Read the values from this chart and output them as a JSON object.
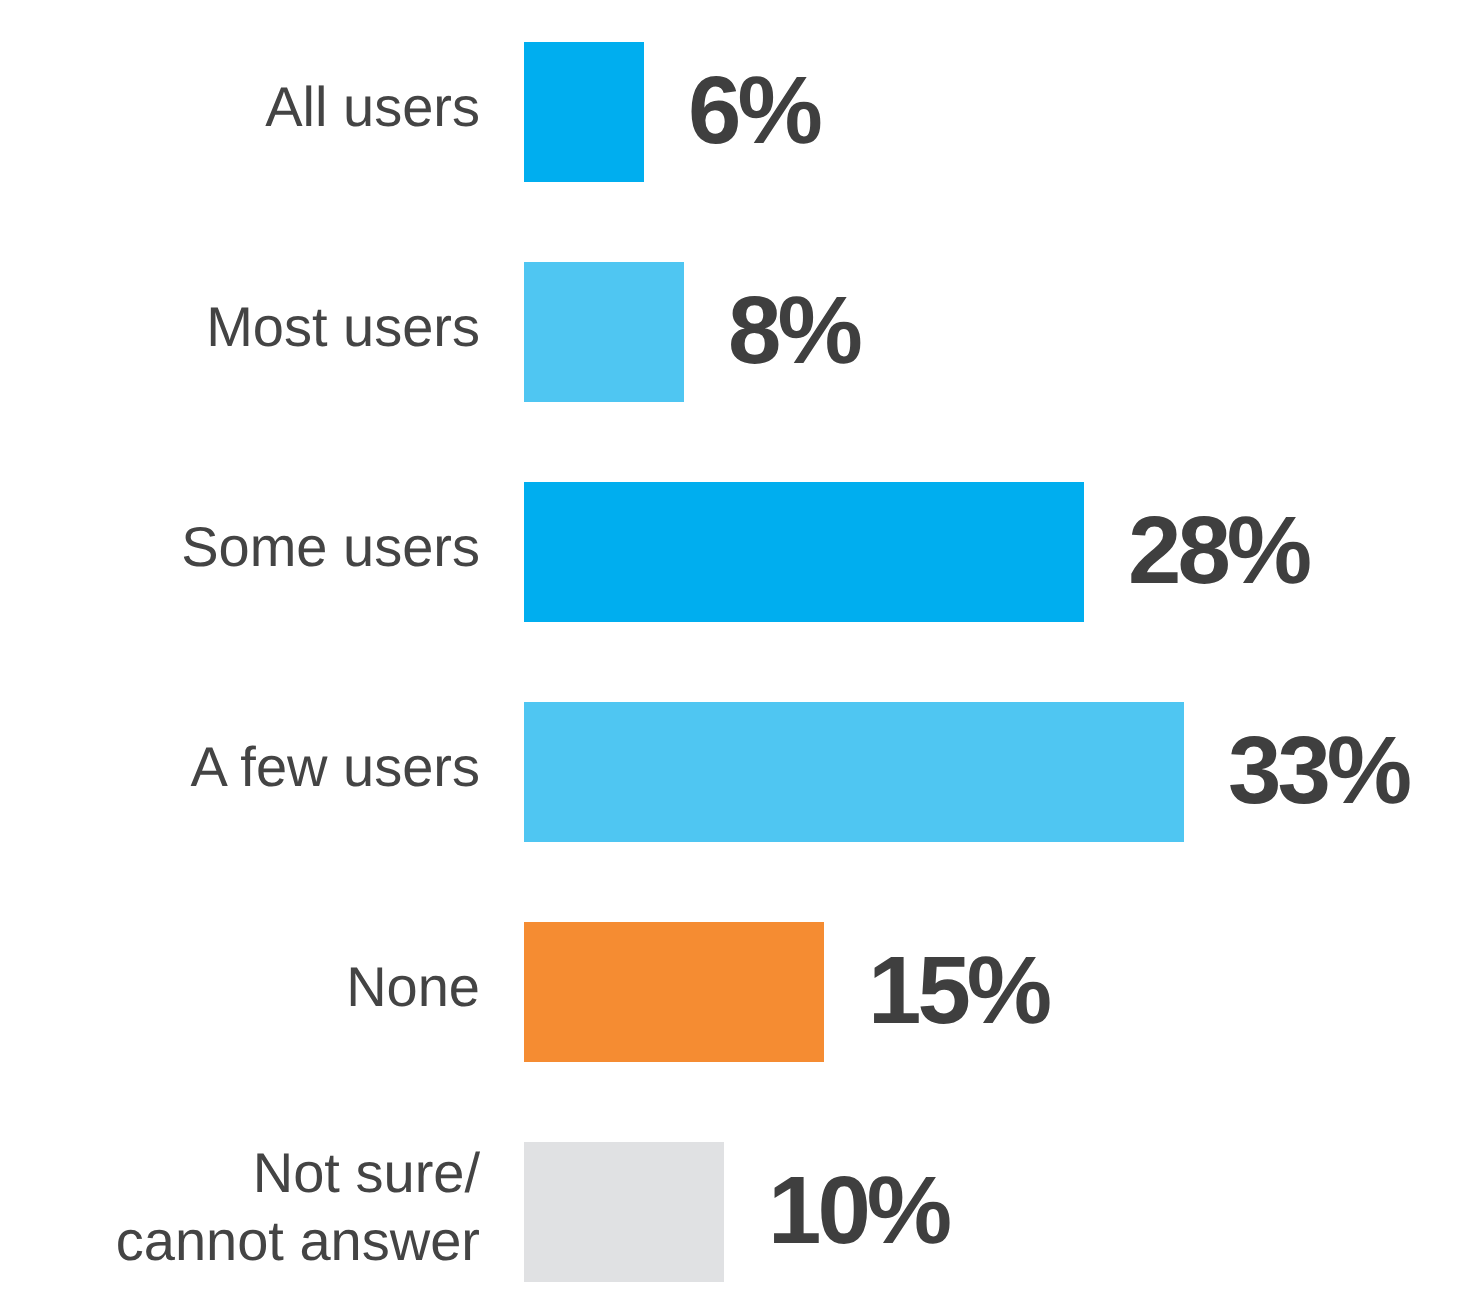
{
  "chart_data": {
    "type": "bar",
    "orientation": "horizontal",
    "categories": [
      "All users",
      "Most users",
      "Some users",
      "A few users",
      "None",
      "Not sure/ cannot answer"
    ],
    "values": [
      6,
      8,
      28,
      33,
      15,
      10
    ],
    "value_labels": [
      "6%",
      "8%",
      "28%",
      "33%",
      "15%",
      "10%"
    ],
    "colors": [
      "#00aeef",
      "#4fc6f2",
      "#00aeef",
      "#4fc6f2",
      "#f58c32",
      "#e0e1e3"
    ],
    "tick_labels": "y"
  }
}
